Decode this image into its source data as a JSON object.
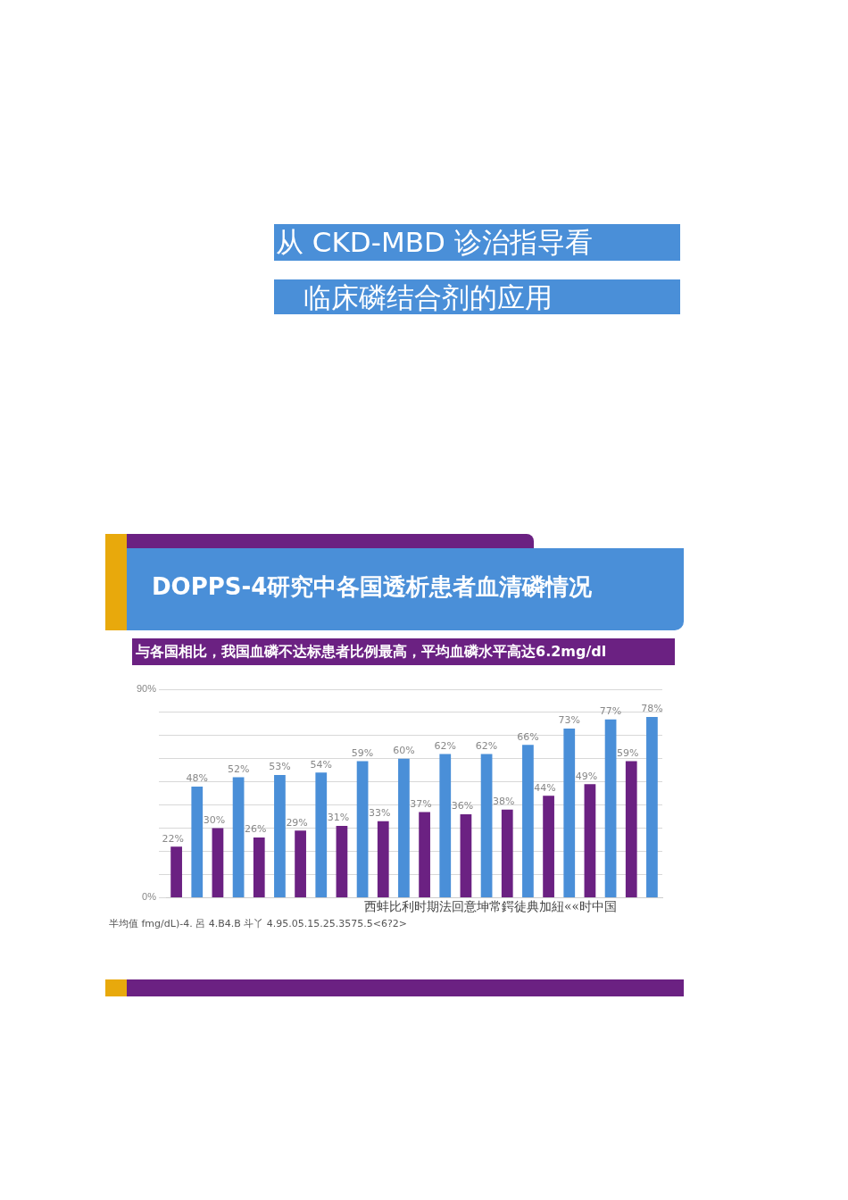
{
  "chart_data": {
    "type": "bar",
    "title": "DOPPS-4研究中各国透析患者血清磷情况",
    "subtitle": "与各国相比，我国血磷不达标患者比例最高，平均血磷水平高达6.2mg/dl",
    "annotations": [
      "从 CKD-MBD 诊治指导看",
      "临床磷结合剂的应用",
      "西蚌比利时期法回意坤常鍔徒典加紐««时中国",
      "半均值 fmg/dL)-4. 呂 4.B4.B 斗丫 4.95.05.15.25.3575.5<6?2>"
    ],
    "categories": [
      null,
      null,
      null,
      null,
      null,
      null,
      null,
      null,
      null,
      null,
      null,
      null
    ],
    "series": [
      {
        "color": "#6b2182",
        "values": [
          22,
          30,
          26,
          29,
          31,
          33,
          37,
          36,
          38,
          44,
          49,
          59
        ],
        "value_labels": [
          "22%",
          "30%",
          "26%",
          "29%",
          "31%",
          "33%",
          "37%",
          "36%",
          "38%",
          "44%",
          "49%",
          "59%"
        ]
      },
      {
        "color": "#4a8fd8",
        "values": [
          48,
          52,
          53,
          54,
          59,
          60,
          62,
          62,
          66,
          73,
          77,
          78
        ],
        "value_labels": [
          "48%",
          "52%",
          "53%",
          "54%",
          "59%",
          "60%",
          "62%",
          "62%",
          "66%",
          "73%",
          "77%",
          "78%"
        ]
      }
    ],
    "ylim": [
      0,
      90
    ],
    "yticks": [
      {
        "value": 0,
        "label": "0%"
      },
      {
        "value": 10,
        "label": null
      },
      {
        "value": 20,
        "label": null
      },
      {
        "value": 30,
        "label": null
      },
      {
        "value": 40,
        "label": null
      },
      {
        "value": 50,
        "label": null
      },
      {
        "value": 60,
        "label": null
      },
      {
        "value": 70,
        "label": null
      },
      {
        "value": 80,
        "label": null
      },
      {
        "value": 90,
        "label": "90%"
      }
    ],
    "grid": "y",
    "tick_labels": "y",
    "legend": false
  }
}
